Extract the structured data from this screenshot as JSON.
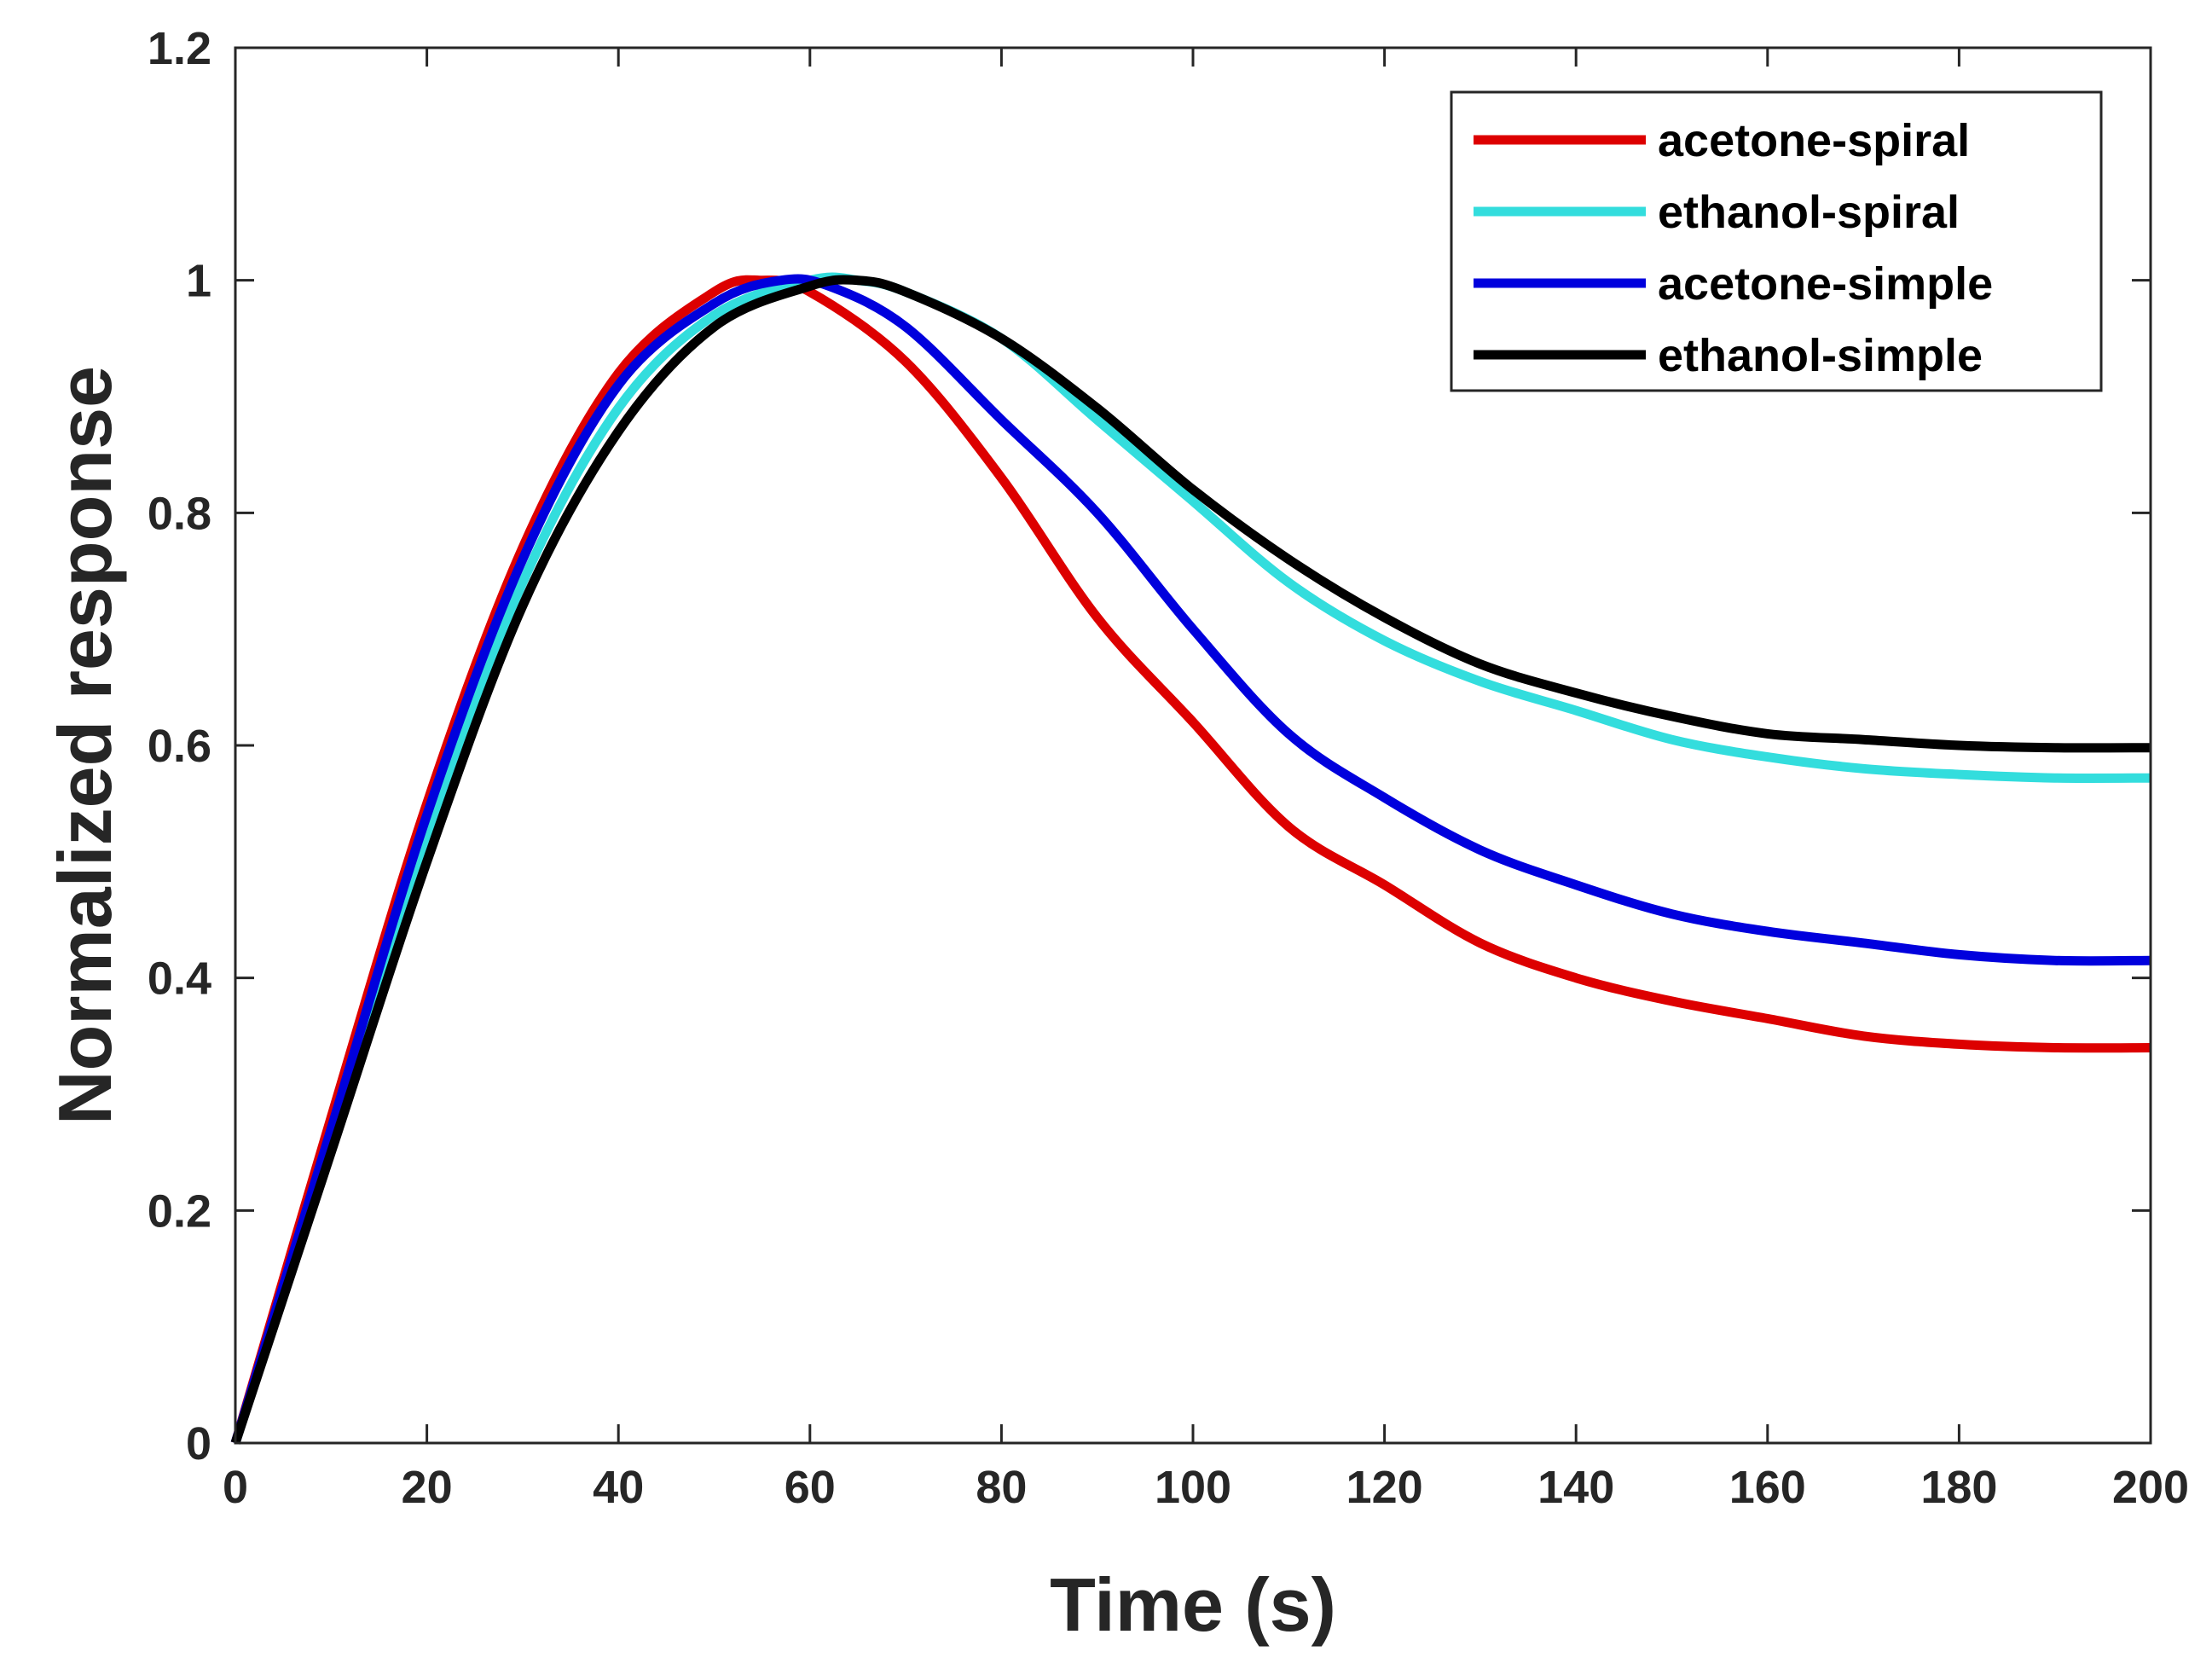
{
  "chart_data": {
    "type": "line",
    "title": "",
    "xlabel": "Time (s)",
    "ylabel": "Normalized response",
    "xlim": [
      0,
      200
    ],
    "ylim": [
      0,
      1.2
    ],
    "xticks": [
      0,
      20,
      40,
      60,
      80,
      100,
      120,
      140,
      160,
      180,
      200
    ],
    "yticks": [
      0,
      0.2,
      0.4,
      0.6,
      0.8,
      1,
      1.2
    ],
    "xtick_labels": [
      "0",
      "20",
      "40",
      "60",
      "80",
      "100",
      "120",
      "140",
      "160",
      "180",
      "200"
    ],
    "ytick_labels": [
      "0",
      "0.2",
      "0.4",
      "0.6",
      "0.8",
      "1",
      "1.2"
    ],
    "grid": false,
    "legend_position": "top-right",
    "series": [
      {
        "name": "acetone-spiral",
        "color": "#dd0000",
        "points": [
          [
            0,
            0
          ],
          [
            10,
            0.28
          ],
          [
            20,
            0.55
          ],
          [
            30,
            0.77
          ],
          [
            40,
            0.92
          ],
          [
            50,
            0.99
          ],
          [
            55,
            1.0
          ],
          [
            60,
            0.99
          ],
          [
            70,
            0.93
          ],
          [
            80,
            0.83
          ],
          [
            90,
            0.71
          ],
          [
            100,
            0.62
          ],
          [
            110,
            0.53
          ],
          [
            120,
            0.48
          ],
          [
            130,
            0.43
          ],
          [
            140,
            0.4
          ],
          [
            150,
            0.38
          ],
          [
            160,
            0.365
          ],
          [
            170,
            0.35
          ],
          [
            180,
            0.343
          ],
          [
            190,
            0.34
          ],
          [
            200,
            0.34
          ]
        ]
      },
      {
        "name": "ethanol-spiral",
        "color": "#33dddd",
        "points": [
          [
            0,
            0
          ],
          [
            10,
            0.26
          ],
          [
            20,
            0.52
          ],
          [
            30,
            0.74
          ],
          [
            40,
            0.89
          ],
          [
            50,
            0.97
          ],
          [
            60,
            1.0
          ],
          [
            65,
            1.0
          ],
          [
            70,
            0.99
          ],
          [
            80,
            0.95
          ],
          [
            90,
            0.88
          ],
          [
            100,
            0.81
          ],
          [
            110,
            0.74
          ],
          [
            120,
            0.69
          ],
          [
            130,
            0.655
          ],
          [
            140,
            0.63
          ],
          [
            150,
            0.605
          ],
          [
            160,
            0.59
          ],
          [
            170,
            0.58
          ],
          [
            180,
            0.575
          ],
          [
            190,
            0.572
          ],
          [
            200,
            0.572
          ]
        ]
      },
      {
        "name": "acetone-simple",
        "color": "#0000dd",
        "points": [
          [
            0,
            0
          ],
          [
            10,
            0.27
          ],
          [
            20,
            0.54
          ],
          [
            30,
            0.76
          ],
          [
            40,
            0.91
          ],
          [
            50,
            0.98
          ],
          [
            57,
            1.0
          ],
          [
            62,
            0.995
          ],
          [
            70,
            0.96
          ],
          [
            80,
            0.88
          ],
          [
            90,
            0.8
          ],
          [
            100,
            0.7
          ],
          [
            110,
            0.61
          ],
          [
            120,
            0.555
          ],
          [
            130,
            0.51
          ],
          [
            140,
            0.48
          ],
          [
            150,
            0.455
          ],
          [
            160,
            0.44
          ],
          [
            170,
            0.43
          ],
          [
            180,
            0.42
          ],
          [
            190,
            0.415
          ],
          [
            200,
            0.415
          ]
        ]
      },
      {
        "name": "ethanol-simple",
        "color": "#000000",
        "points": [
          [
            0,
            0
          ],
          [
            10,
            0.25
          ],
          [
            20,
            0.5
          ],
          [
            30,
            0.72
          ],
          [
            40,
            0.87
          ],
          [
            50,
            0.96
          ],
          [
            60,
            0.995
          ],
          [
            65,
            1.0
          ],
          [
            70,
            0.99
          ],
          [
            80,
            0.95
          ],
          [
            90,
            0.89
          ],
          [
            100,
            0.82
          ],
          [
            110,
            0.76
          ],
          [
            120,
            0.71
          ],
          [
            130,
            0.67
          ],
          [
            140,
            0.645
          ],
          [
            150,
            0.625
          ],
          [
            160,
            0.61
          ],
          [
            170,
            0.605
          ],
          [
            180,
            0.6
          ],
          [
            190,
            0.598
          ],
          [
            200,
            0.598
          ]
        ]
      }
    ]
  }
}
